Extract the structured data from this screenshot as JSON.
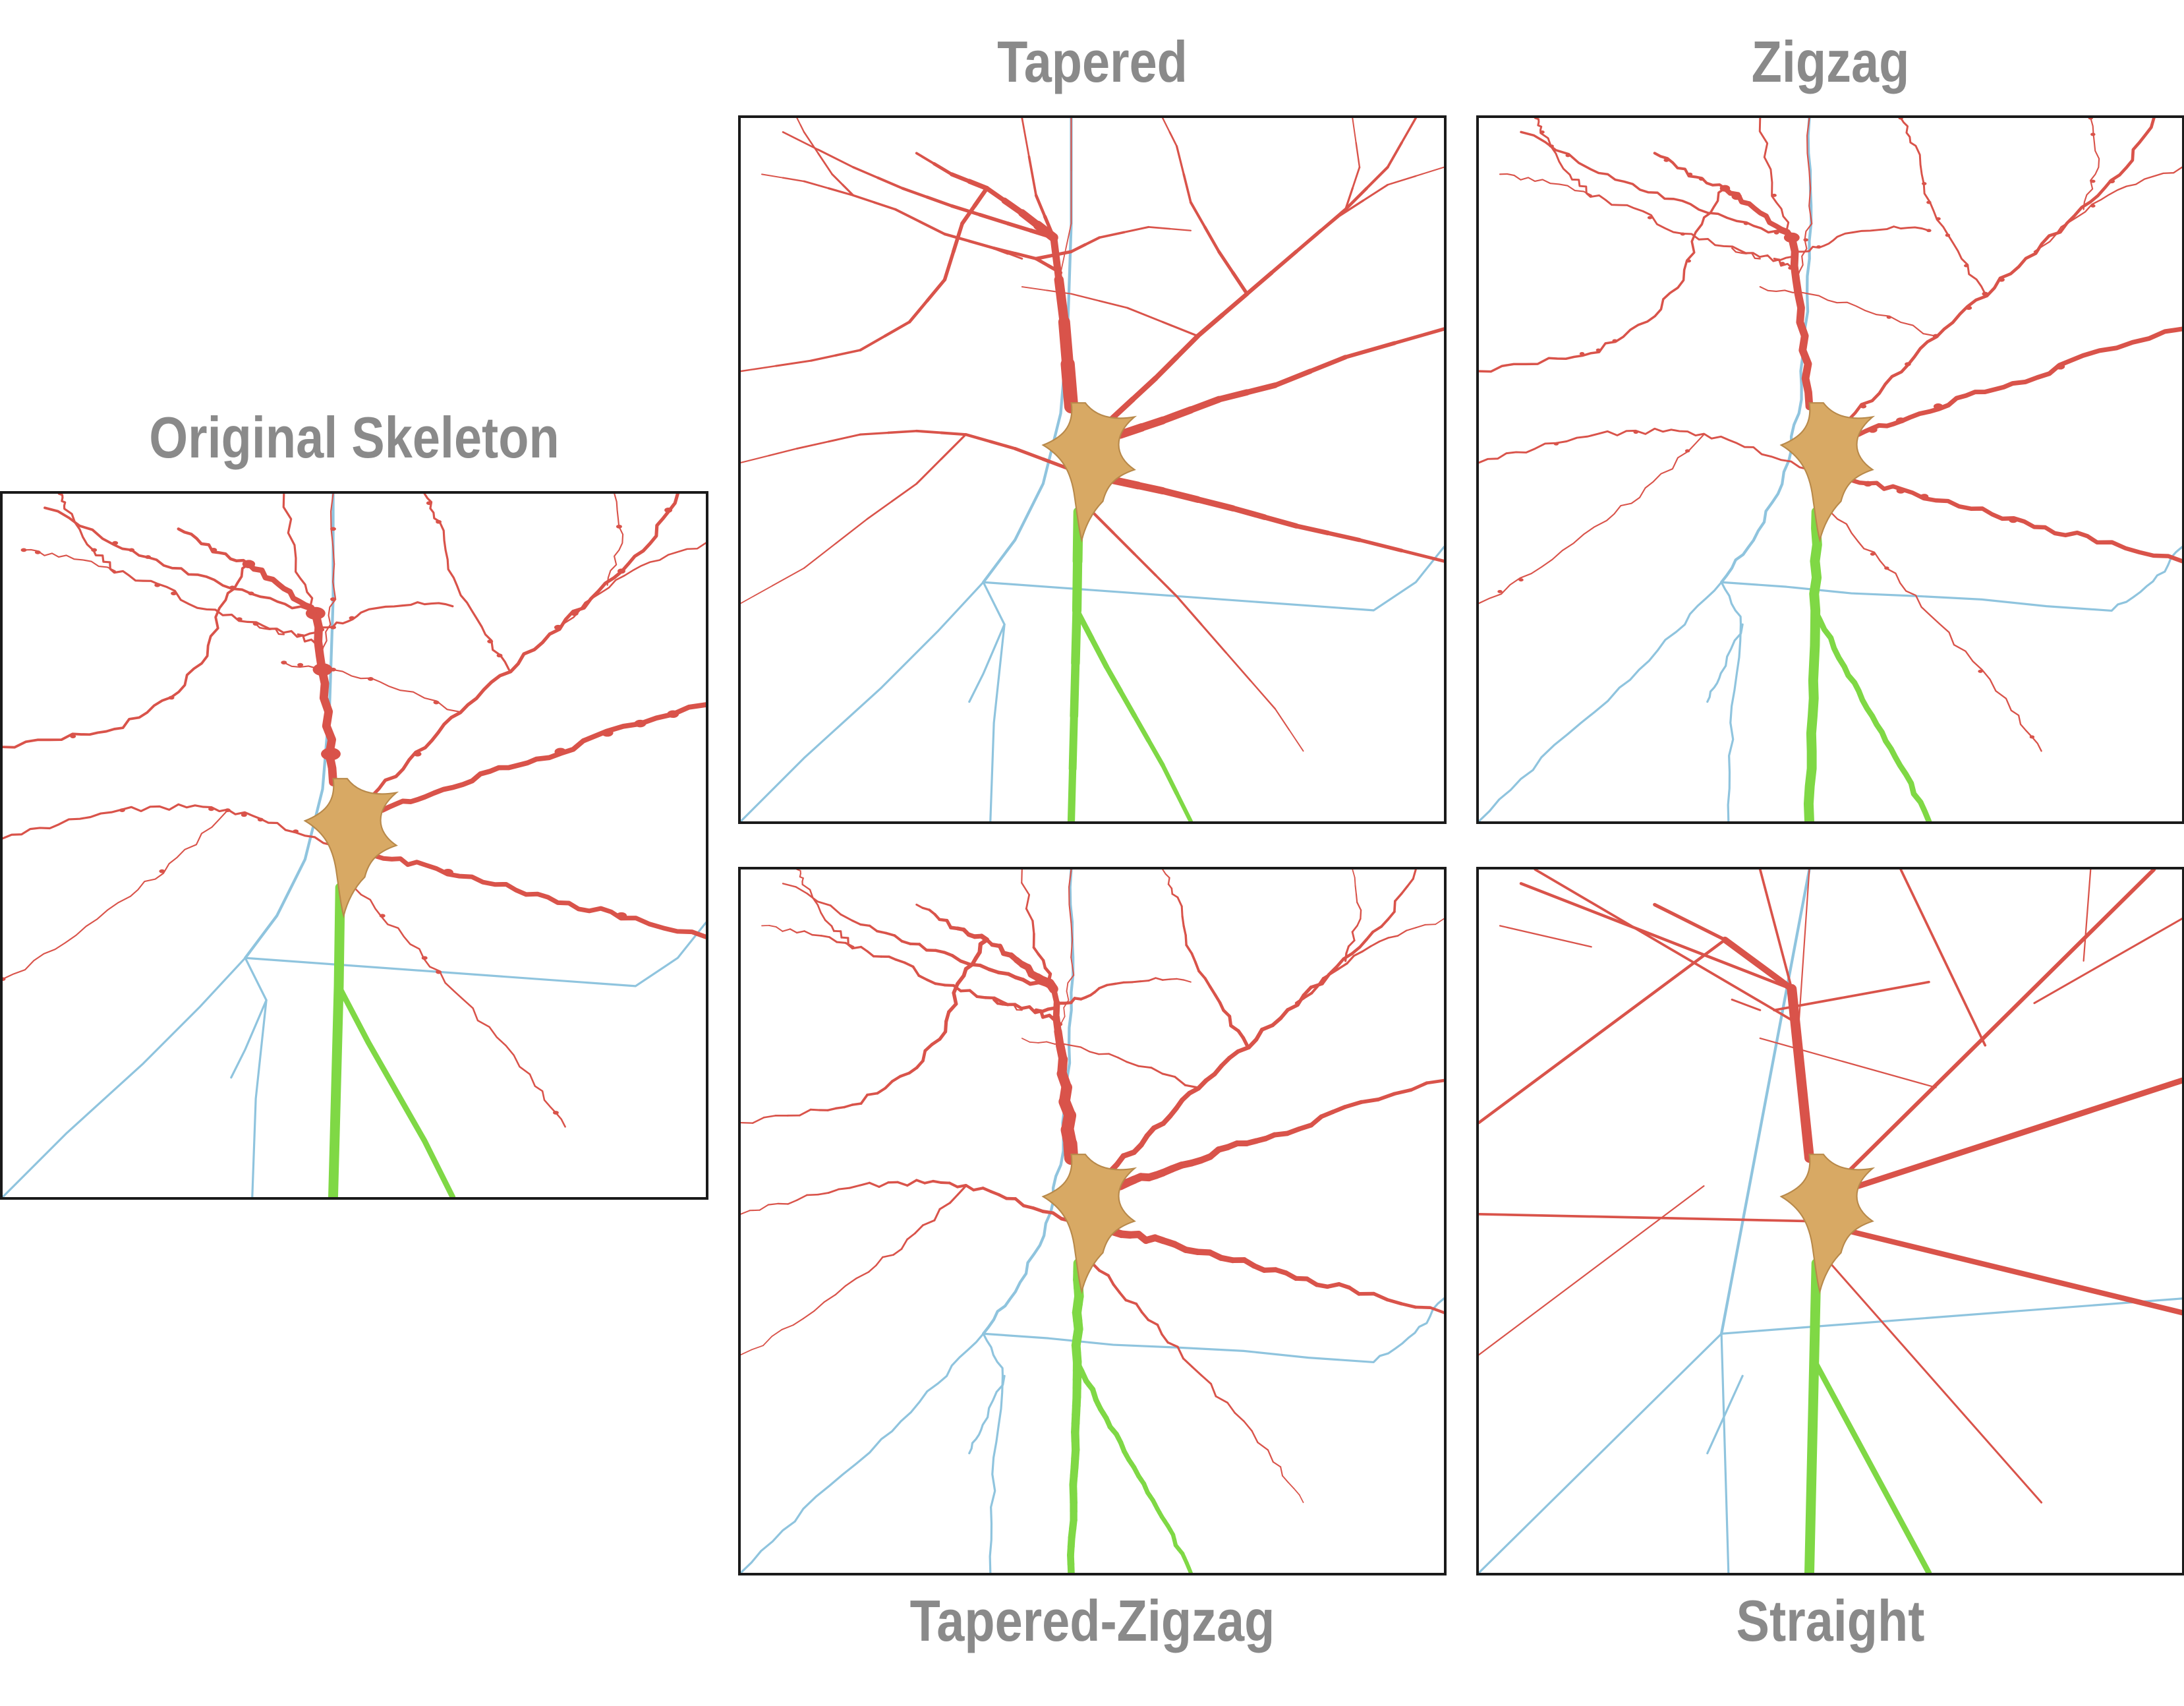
{
  "figure": {
    "panels": [
      {
        "id": "original",
        "title": "Original Skeleton",
        "style": "original"
      },
      {
        "id": "tapered",
        "title": "Tapered",
        "style": "tapered"
      },
      {
        "id": "zigzag",
        "title": "Zigzag",
        "style": "zigzag"
      },
      {
        "id": "tapered_zigzag",
        "title": "Tapered-Zigzag",
        "style": "tapered_zigzag"
      },
      {
        "id": "straight",
        "title": "Straight",
        "style": "straight"
      }
    ],
    "colors": {
      "dendrite": "#d9534a",
      "axon": "#8fc4de",
      "soma": "#d8a964",
      "axon_initial": "#7fd845",
      "border": "#1a1a1a",
      "title_text": "#8a8a8a"
    }
  }
}
